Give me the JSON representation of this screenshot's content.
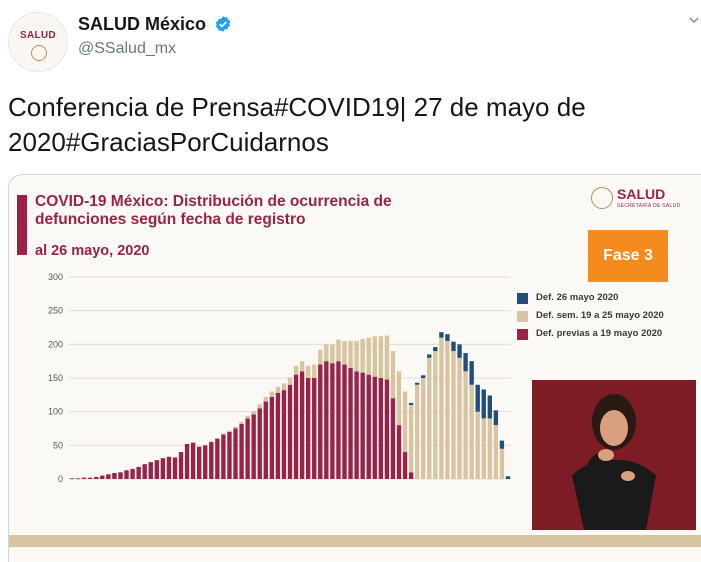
{
  "account": {
    "avatar_text": "SALUD",
    "display_name": "SALUD México",
    "handle": "@SSalud_mx"
  },
  "tweet": {
    "text": "Conferencia de Prensa#COVID19| 27 de mayo de 2020#GraciasPorCuidarnos"
  },
  "slide": {
    "title": "COVID-19 México: Distribución de ocurrencia de defunciones según fecha de registro",
    "date": "al 26 mayo, 2020",
    "brand": "SALUD",
    "brand_sub": "SECRETARÍA DE SALUD",
    "phase": "Fase 3"
  },
  "colors": {
    "accent": "#9b2247",
    "def_today": "#1f4e79",
    "def_week": "#d8c4a0",
    "def_prev": "#9b2247",
    "phase_orange": "#f58a1f",
    "verified_blue": "#1da1f2"
  },
  "chart_data": {
    "type": "bar",
    "stacked": true,
    "ylim": [
      0,
      300
    ],
    "yticks": [
      0,
      50,
      100,
      150,
      200,
      250,
      300
    ],
    "grid": true,
    "legend_position": "right",
    "series": [
      {
        "name": "Def. 26 mayo 2020",
        "values": [
          0,
          0,
          0,
          0,
          0,
          0,
          0,
          0,
          0,
          0,
          0,
          0,
          0,
          0,
          0,
          0,
          0,
          0,
          0,
          0,
          0,
          0,
          0,
          0,
          0,
          0,
          0,
          0,
          0,
          0,
          0,
          0,
          0,
          0,
          0,
          0,
          0,
          0,
          0,
          0,
          0,
          0,
          0,
          0,
          0,
          0,
          0,
          0,
          0,
          0,
          0,
          0,
          0,
          0,
          0,
          0,
          3,
          3,
          4,
          5,
          6,
          8,
          10,
          14,
          20,
          27,
          35,
          40,
          43,
          34,
          22,
          12,
          4
        ]
      },
      {
        "name": "Def. sem. 19 a 25 mayo 2020",
        "values": [
          0,
          0,
          0,
          0,
          0,
          0,
          0,
          0,
          0,
          0,
          0,
          0,
          0,
          0,
          0,
          0,
          0,
          0,
          0,
          0,
          0,
          0,
          0,
          1,
          1,
          2,
          2,
          3,
          3,
          4,
          5,
          6,
          7,
          8,
          9,
          10,
          11,
          13,
          15,
          18,
          20,
          22,
          25,
          28,
          32,
          35,
          40,
          45,
          50,
          55,
          60,
          62,
          65,
          70,
          80,
          90,
          100,
          140,
          150,
          180,
          190,
          210,
          205,
          190,
          180,
          160,
          140,
          100,
          90,
          90,
          80,
          45,
          0
        ]
      },
      {
        "name": "Def. previas a 19 mayo 2020",
        "values": [
          1,
          1,
          2,
          2,
          3,
          5,
          7,
          9,
          10,
          13,
          15,
          18,
          22,
          25,
          28,
          31,
          33,
          32,
          40,
          52,
          54,
          48,
          50,
          55,
          60,
          66,
          70,
          75,
          82,
          90,
          96,
          105,
          115,
          122,
          128,
          132,
          140,
          155,
          160,
          150,
          150,
          170,
          175,
          172,
          175,
          170,
          165,
          160,
          158,
          155,
          152,
          150,
          148,
          120,
          80,
          40,
          10,
          0,
          0,
          0,
          0,
          0,
          0,
          0,
          0,
          0,
          0,
          0,
          0,
          0,
          0,
          0,
          0
        ]
      }
    ]
  }
}
